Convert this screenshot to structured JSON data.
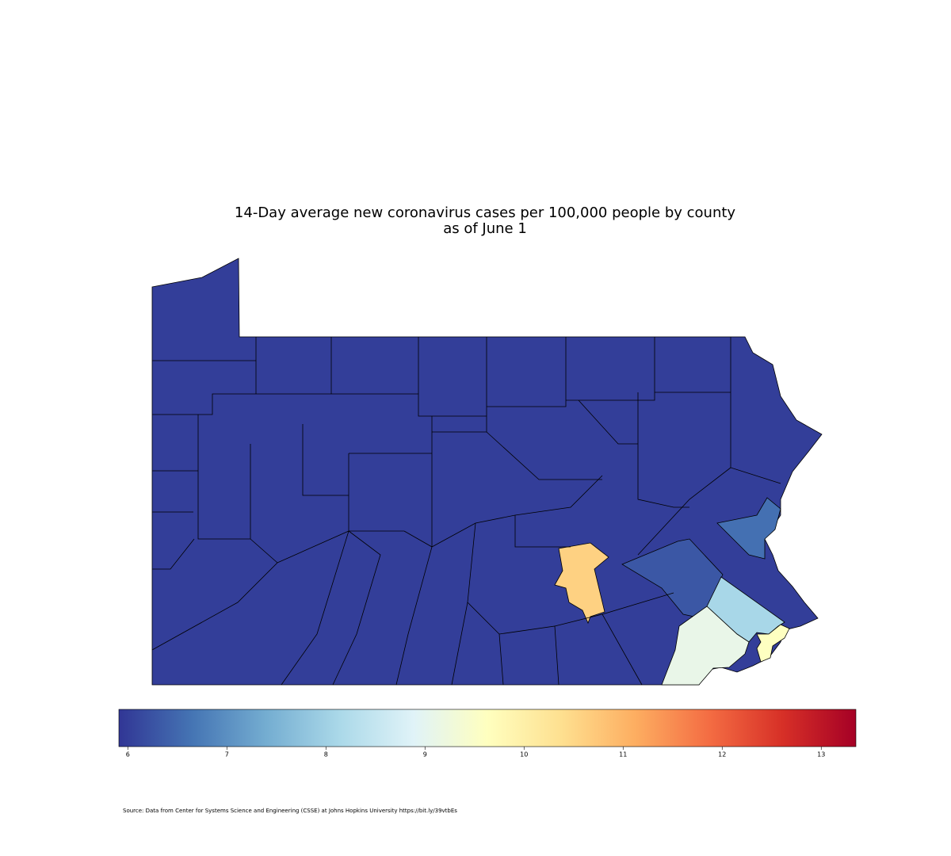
{
  "chart_data": {
    "type": "choropleth",
    "title": [
      "14-Day average new coronavirus cases per 100,000 people by county",
      "as of June 1"
    ],
    "values": [
      6,
      10.6,
      6.3,
      6.6,
      8.1,
      9.1,
      9.6
    ],
    "colormap": [
      "#313695",
      "#4575b4",
      "#74add1",
      "#abd9e9",
      "#e0f3f8",
      "#ffffbf",
      "#fee090",
      "#fdae61",
      "#f46d43",
      "#d73027",
      "#a50026"
    ],
    "clim": [
      5.91,
      13.35
    ],
    "cticks": [
      6,
      7,
      8,
      9,
      10,
      11,
      12,
      13
    ],
    "source": "Source: Data from Center for Systems Science and Engineering (CSSE) at Johns Hopkins University https://bit.ly/39vtbEs"
  }
}
